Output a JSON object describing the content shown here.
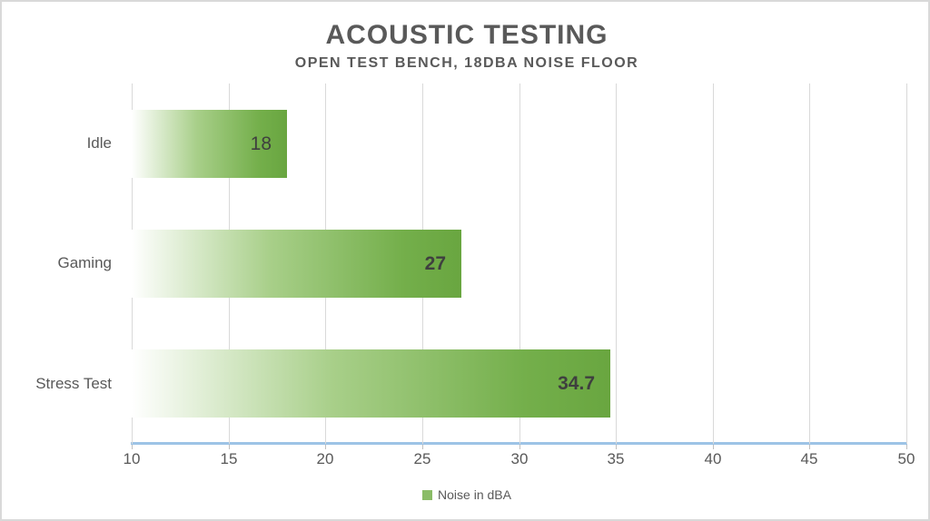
{
  "header": {
    "title": "ACOUSTIC TESTING",
    "subtitle": "OPEN TEST BENCH, 18DBA NOISE FLOOR"
  },
  "chart_data": {
    "type": "bar",
    "orientation": "horizontal",
    "title": "ACOUSTIC TESTING",
    "subtitle": "OPEN TEST BENCH, 18DBA NOISE FLOOR",
    "categories": [
      "Idle",
      "Gaming",
      "Stress Test"
    ],
    "values": [
      18,
      27,
      34.7
    ],
    "value_labels": [
      "18",
      "27",
      "34.7"
    ],
    "value_label_bold": [
      false,
      true,
      true
    ],
    "series_name": "Noise in dBA",
    "xlabel": "",
    "ylabel": "",
    "xlim": [
      10,
      50
    ],
    "xticks": [
      10,
      15,
      20,
      25,
      30,
      35,
      40,
      45,
      50
    ],
    "grid": true,
    "legend_position": "bottom"
  },
  "legend": {
    "label": "Noise in dBA",
    "swatch_color": "#8abc66"
  },
  "colors": {
    "title_text": "#595959",
    "axis_text": "#595959",
    "data_label_text": "#3f3f3f",
    "gridline": "#d9d9d9",
    "tick_mark": "#bfbfbf",
    "axis_line": "#9dc3e6",
    "frame_border": "#d9d9d9",
    "bar_gradient_stops": [
      "#ffffff",
      "#a8cf89",
      "#74af4b",
      "#69a640"
    ]
  }
}
